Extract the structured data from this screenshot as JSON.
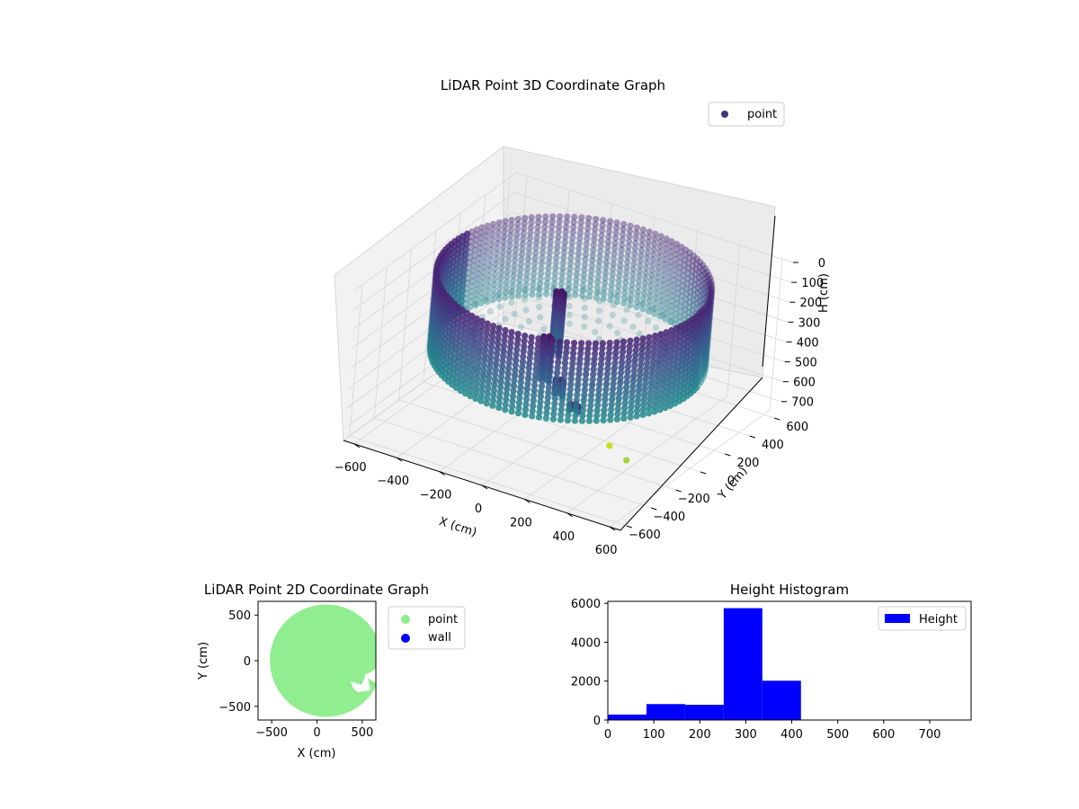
{
  "chart_data": [
    {
      "type": "scatter3d",
      "title": "LiDAR Point 3D Coordinate Graph",
      "xlabel": "X (cm)",
      "ylabel": "Y (cm)",
      "zlabel": "H (cm)",
      "xlim": [
        -650,
        650
      ],
      "ylim": [
        -650,
        650
      ],
      "zlim": [
        0,
        760
      ],
      "zaxis_inverted": true,
      "x_ticks": [
        "−600",
        "−400",
        "−200",
        "0",
        "200",
        "400",
        "600"
      ],
      "y_ticks": [
        "−600",
        "−400",
        "−200",
        "0",
        "200",
        "400",
        "600"
      ],
      "z_ticks": [
        "0",
        "100",
        "200",
        "300",
        "400",
        "500",
        "600",
        "700"
      ],
      "legend": {
        "entries": [
          "point"
        ],
        "position": "upper right"
      },
      "colormap": "viridis",
      "point_color": "#3e3784",
      "wall": {
        "shape": "cylinder",
        "radius": 560,
        "h_min": 20,
        "h_max": 420
      },
      "interior_features": [
        {
          "x": -80,
          "y": 40,
          "h_top": 130,
          "h_bottom": 440
        },
        {
          "x": -20,
          "y": -150,
          "h_top": 250,
          "h_bottom": 460
        },
        {
          "x": 120,
          "y": -280,
          "h_top": 360,
          "h_bottom": 440
        },
        {
          "x": 260,
          "y": -400,
          "h_top": 380,
          "h_bottom": 420
        }
      ],
      "stray_points": [
        {
          "x": 520,
          "y": -560,
          "h": 420,
          "color": "#c8e020"
        },
        {
          "x": 640,
          "y": -630,
          "h": 420,
          "color": "#a0da39"
        }
      ]
    },
    {
      "type": "scatter",
      "title": "LiDAR Point 2D Coordinate Graph",
      "xlabel": "X (cm)",
      "ylabel": "Y (cm)",
      "xlim": [
        -650,
        650
      ],
      "ylim": [
        -650,
        650
      ],
      "x_ticks": [
        "−500",
        "0",
        "500"
      ],
      "y_ticks": [
        "−500",
        "0",
        "500"
      ],
      "series": [
        {
          "name": "point",
          "color": "#90ee90",
          "region": {
            "cx": 100,
            "cy": 0,
            "r": 620
          }
        },
        {
          "name": "wall",
          "color": "#0000ff",
          "points": []
        }
      ],
      "legend": {
        "entries": [
          "point",
          "wall"
        ],
        "position": "outside right"
      }
    },
    {
      "type": "bar",
      "title": "Height Histogram",
      "xlabel": "",
      "ylabel": "",
      "bin_edges": [
        0,
        84,
        168,
        252,
        336,
        420,
        504,
        588,
        672,
        756
      ],
      "values": [
        280,
        820,
        780,
        5750,
        2020,
        0,
        0,
        0,
        0
      ],
      "xlim": [
        0,
        790
      ],
      "ylim": [
        0,
        6100
      ],
      "x_ticks": [
        "0",
        "100",
        "200",
        "300",
        "400",
        "500",
        "600",
        "700"
      ],
      "y_ticks": [
        "0",
        "2000",
        "4000",
        "6000"
      ],
      "series": [
        {
          "name": "Height",
          "color": "#0000ff"
        }
      ],
      "legend": {
        "entries": [
          "Height"
        ],
        "position": "upper right"
      }
    }
  ]
}
